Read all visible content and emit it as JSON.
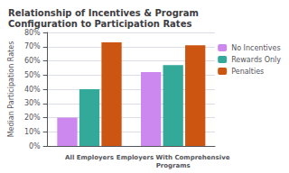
{
  "chart_data": {
    "type": "bar",
    "title": "Relationship of Incentives & Program\nConfiguration to Participation Rates",
    "ylabel": "Median Participation Rates",
    "categories": [
      "All Employers",
      "Employers With Comprehensive\nPrograms"
    ],
    "series": [
      {
        "name": "No Incentives",
        "color": "#cc88ee",
        "values": [
          20,
          52
        ]
      },
      {
        "name": "Rewards Only",
        "color": "#33aa99",
        "values": [
          40,
          57
        ]
      },
      {
        "name": "Penalties",
        "color": "#cc5511",
        "values": [
          73,
          71
        ]
      }
    ],
    "ylim": [
      0,
      80
    ],
    "yticks": [
      {
        "value": 0,
        "label": "0%"
      },
      {
        "value": 10,
        "label": "10%"
      },
      {
        "value": 20,
        "label": "20%"
      },
      {
        "value": 30,
        "label": "30%"
      },
      {
        "value": 40,
        "label": "40%"
      },
      {
        "value": 50,
        "label": "50%"
      },
      {
        "value": 60,
        "label": "60%"
      },
      {
        "value": 70,
        "label": "70%"
      },
      {
        "value": 80,
        "label": "80%"
      }
    ],
    "grid": true,
    "legend": "upper right"
  }
}
